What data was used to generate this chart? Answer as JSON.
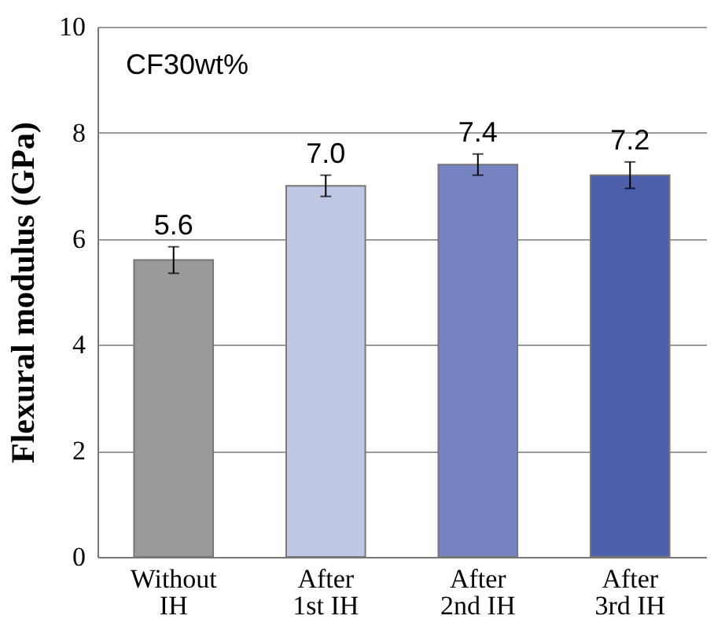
{
  "chart_data": {
    "type": "bar",
    "ylabel": "Flexural modulus (GPa)",
    "annotations": [
      "CF30wt%"
    ],
    "categories": [
      "Without IH",
      "After 1st IH",
      "After 2nd IH",
      "After 3rd IH"
    ],
    "values": [
      5.6,
      7.0,
      7.4,
      7.2
    ],
    "colors": [
      "#9a9a9a",
      "#c0c7e2",
      "#7784c2",
      "#4e5fab"
    ],
    "errors": [
      0.25,
      0.2,
      0.2,
      0.25
    ],
    "value_labels": [
      "5.6",
      "7.0",
      "7.4",
      "7.2"
    ],
    "ylim": [
      0,
      10
    ],
    "yticks": [
      0,
      2,
      4,
      6,
      8,
      10
    ],
    "grid": "y"
  }
}
